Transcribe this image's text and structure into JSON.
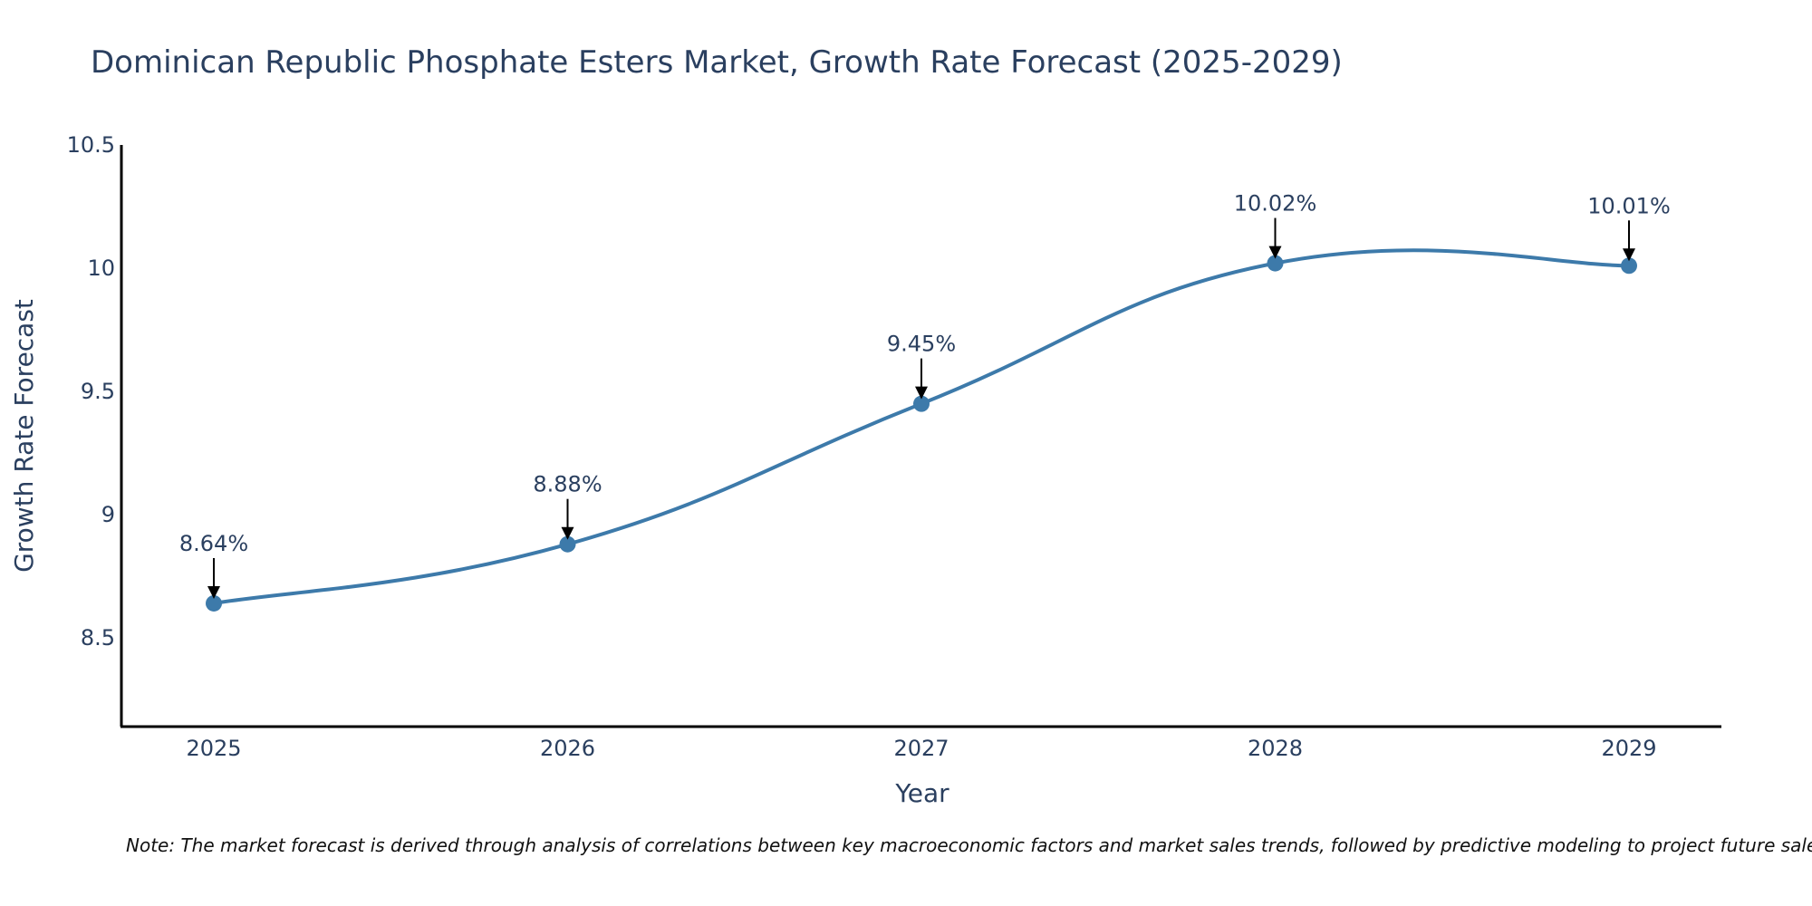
{
  "chart_data": {
    "type": "line",
    "title": "Dominican Republic Phosphate Esters Market, Growth Rate Forecast (2025-2029)",
    "xlabel": "Year",
    "ylabel": "Growth Rate Forecast",
    "categories": [
      "2025",
      "2026",
      "2027",
      "2028",
      "2029"
    ],
    "values": [
      8.64,
      8.88,
      9.45,
      10.02,
      10.01
    ],
    "data_labels": [
      "8.64%",
      "8.88%",
      "9.45%",
      "10.02%",
      "10.01%"
    ],
    "ylim": [
      8.14,
      10.5
    ],
    "yticks": [
      8.5,
      9,
      9.5,
      10,
      10.5
    ],
    "ytick_labels": [
      "8.5",
      "9",
      "9.5",
      "10",
      "10.5"
    ],
    "grid": false,
    "line_shape": "spline",
    "series_color": "#3d7aaa",
    "note": "Note: The market forecast is derived through analysis of correlations between key macroeconomic factors and market sales trends, followed by predictive modeling to project future sales."
  }
}
